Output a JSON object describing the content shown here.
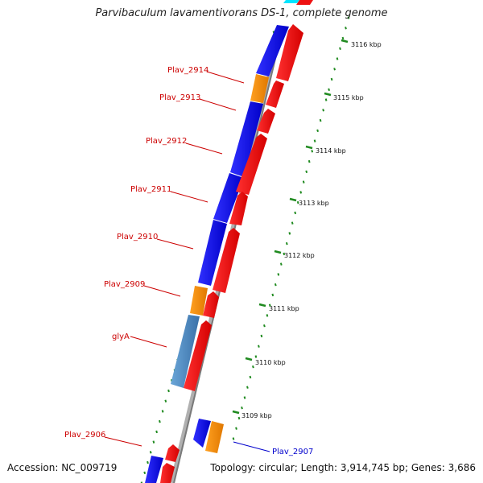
{
  "title": "Parvibaculum lavamentivorans DS-1, complete genome",
  "footer": {
    "accession": "Accession: NC_009719",
    "summary": "Topology: circular; Length: 3,914,745 bp; Genes: 3,686"
  },
  "colors": {
    "forward_cds": "#ee1111",
    "reverse_cds": "#1a1aee",
    "orange_gene": "#f5900d",
    "steel_gene": "#4a86be",
    "cyan_gene": "#00e5ff",
    "tick_green": "#1f8a1f",
    "backbone_gray": "#8a8a8a",
    "label_red": "#cc0000",
    "label_blue": "#0000cc"
  },
  "scale_ticks": [
    {
      "label": "3116 kbp"
    },
    {
      "label": "3115 kbp"
    },
    {
      "label": "3114 kbp"
    },
    {
      "label": "3113 kbp"
    },
    {
      "label": "3112 kbp"
    },
    {
      "label": "3111 kbp"
    },
    {
      "label": "3110 kbp"
    },
    {
      "label": "3109 kbp"
    }
  ],
  "gene_labels": [
    {
      "name": "Plav_2914",
      "color": "#cc0000"
    },
    {
      "name": "Plav_2913",
      "color": "#cc0000"
    },
    {
      "name": "Plav_2912",
      "color": "#cc0000"
    },
    {
      "name": "Plav_2911",
      "color": "#cc0000"
    },
    {
      "name": "Plav_2910",
      "color": "#cc0000"
    },
    {
      "name": "Plav_2909",
      "color": "#cc0000"
    },
    {
      "name": "glyA",
      "color": "#cc0000"
    },
    {
      "name": "Plav_2906",
      "color": "#cc0000"
    },
    {
      "name": "Plav_2907",
      "color": "#0000cc"
    }
  ]
}
